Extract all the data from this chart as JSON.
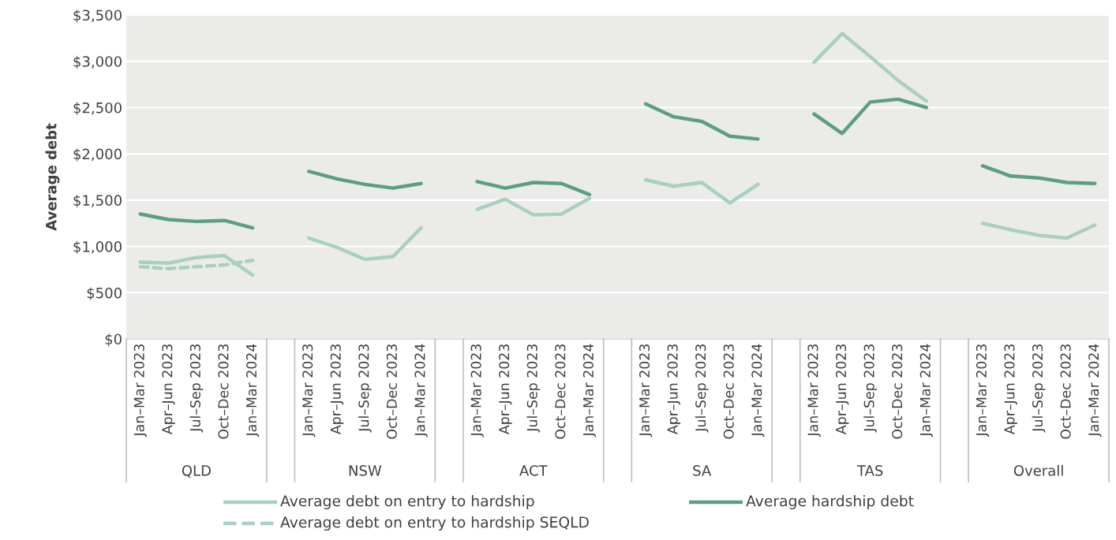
{
  "chart_data": {
    "type": "line",
    "ylabel": "Average debt",
    "categories": [
      "Jan–Mar 2023",
      "Apr–Jun 2023",
      "Jul–Sep 2023",
      "Oct–Dec 2023",
      "Jan–Mar 2024",
      null,
      "Jan–Mar 2023",
      "Apr–Jun 2023",
      "Jul–Sep 2023",
      "Oct–Dec 2023",
      "Jan–Mar 2024",
      null,
      "Jan–Mar 2023",
      "Apr–Jun 2023",
      "Jul–Sep 2023",
      "Oct–Dec 2023",
      "Jan–Mar 2024",
      null,
      "Jan–Mar 2023",
      "Apr–Jun 2023",
      "Jul–Sep 2023",
      "Oct–Dec 2023",
      "Jan–Mar 2024",
      null,
      "Jan–Mar 2023",
      "Apr–Jun 2023",
      "Jul–Sep 2023",
      "Oct–Dec 2023",
      "Jan–Mar 2024",
      null,
      "Jan–Mar 2023",
      "Apr–Jun 2023",
      "Jul–Sep 2023",
      "Oct–Dec 2023",
      "Jan–Mar 2024"
    ],
    "series": [
      {
        "name": "Average debt on entry to hardship",
        "color": "#a8d0c0",
        "line_style": "solid",
        "values": [
          830,
          820,
          880,
          900,
          690,
          null,
          1090,
          990,
          860,
          890,
          1200,
          null,
          1400,
          1510,
          1340,
          1350,
          1520,
          null,
          1720,
          1650,
          1690,
          1470,
          1670,
          null,
          2990,
          3300,
          3050,
          2790,
          2570,
          null,
          1250,
          1180,
          1120,
          1090,
          1230
        ]
      },
      {
        "name": "Average hardship debt",
        "color": "#5b9e85",
        "line_style": "solid",
        "values": [
          1350,
          1290,
          1270,
          1280,
          1200,
          null,
          1810,
          1730,
          1670,
          1630,
          1680,
          null,
          1700,
          1630,
          1690,
          1680,
          1560,
          null,
          2540,
          2400,
          2350,
          2190,
          2160,
          null,
          2430,
          2220,
          2560,
          2590,
          2500,
          null,
          1870,
          1760,
          1740,
          1690,
          1680
        ]
      },
      {
        "name": "Average debt on entry to hardship SEQLD",
        "color": "#a8d0c0",
        "line_style": "dashed",
        "values": [
          780,
          760,
          780,
          800,
          850,
          null,
          null,
          null,
          null,
          null,
          null,
          null,
          null,
          null,
          null,
          null,
          null,
          null,
          null,
          null,
          null,
          null,
          null,
          null,
          null,
          null,
          null,
          null,
          null,
          null,
          null,
          null,
          null,
          null,
          null
        ]
      }
    ],
    "ylim": [
      0,
      3500
    ],
    "yticks": [
      {
        "value": 0,
        "label": "$0"
      },
      {
        "value": 500,
        "label": "$500"
      },
      {
        "value": 1000,
        "label": "$1,000"
      },
      {
        "value": 1500,
        "label": "$1,500"
      },
      {
        "value": 2000,
        "label": "$2,000"
      },
      {
        "value": 2500,
        "label": "$2,500"
      },
      {
        "value": 3000,
        "label": "$3,000"
      },
      {
        "value": 3500,
        "label": "$3,500"
      }
    ],
    "annotations": [
      "QLD",
      "NSW",
      "ACT",
      "SA",
      "TAS",
      "Overall"
    ],
    "grid": "y",
    "legend": "bottom",
    "marker": "none"
  }
}
